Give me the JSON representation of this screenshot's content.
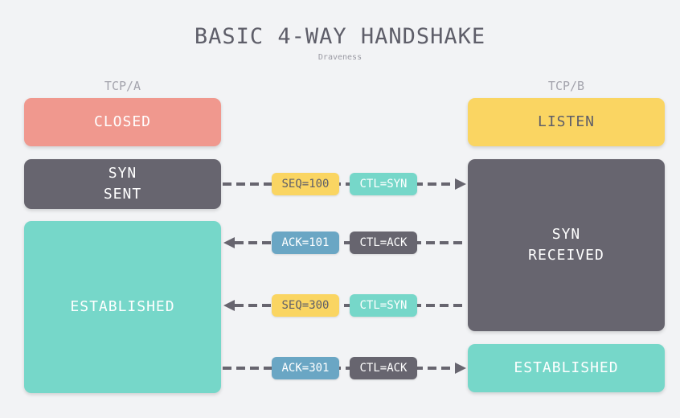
{
  "title": "BASIC 4-WAY HANDSHAKE",
  "subtitle": "Draveness",
  "columns": {
    "a_label": "TCP/A",
    "b_label": "TCP/B"
  },
  "states": {
    "a_closed": "CLOSED",
    "a_syn_sent_line1": "SYN",
    "a_syn_sent_line2": "SENT",
    "a_established": "ESTABLISHED",
    "b_listen": "LISTEN",
    "b_syn_received_line1": "SYN",
    "b_syn_received_line2": "RECEIVED",
    "b_established": "ESTABLISHED"
  },
  "messages": [
    {
      "direction": "A to B",
      "seq_label": "SEQ=100",
      "ctl_label": "CTL=SYN"
    },
    {
      "direction": "B to A",
      "seq_label": "ACK=101",
      "ctl_label": "CTL=ACK"
    },
    {
      "direction": "B to A",
      "seq_label": "SEQ=300",
      "ctl_label": "CTL=SYN"
    },
    {
      "direction": "A to B",
      "seq_label": "ACK=301",
      "ctl_label": "CTL=ACK"
    }
  ],
  "colors": {
    "background": "#f2f3f5",
    "closed": "#f0988e",
    "listen": "#fad562",
    "dark_state": "#67656f",
    "established": "#76d7c9",
    "seq_pill": "#fad562",
    "ack_pill": "#6aa6c4",
    "syn_ctl_pill": "#76d7c9",
    "ack_ctl_pill": "#67656f",
    "arrow": "#67656f"
  }
}
